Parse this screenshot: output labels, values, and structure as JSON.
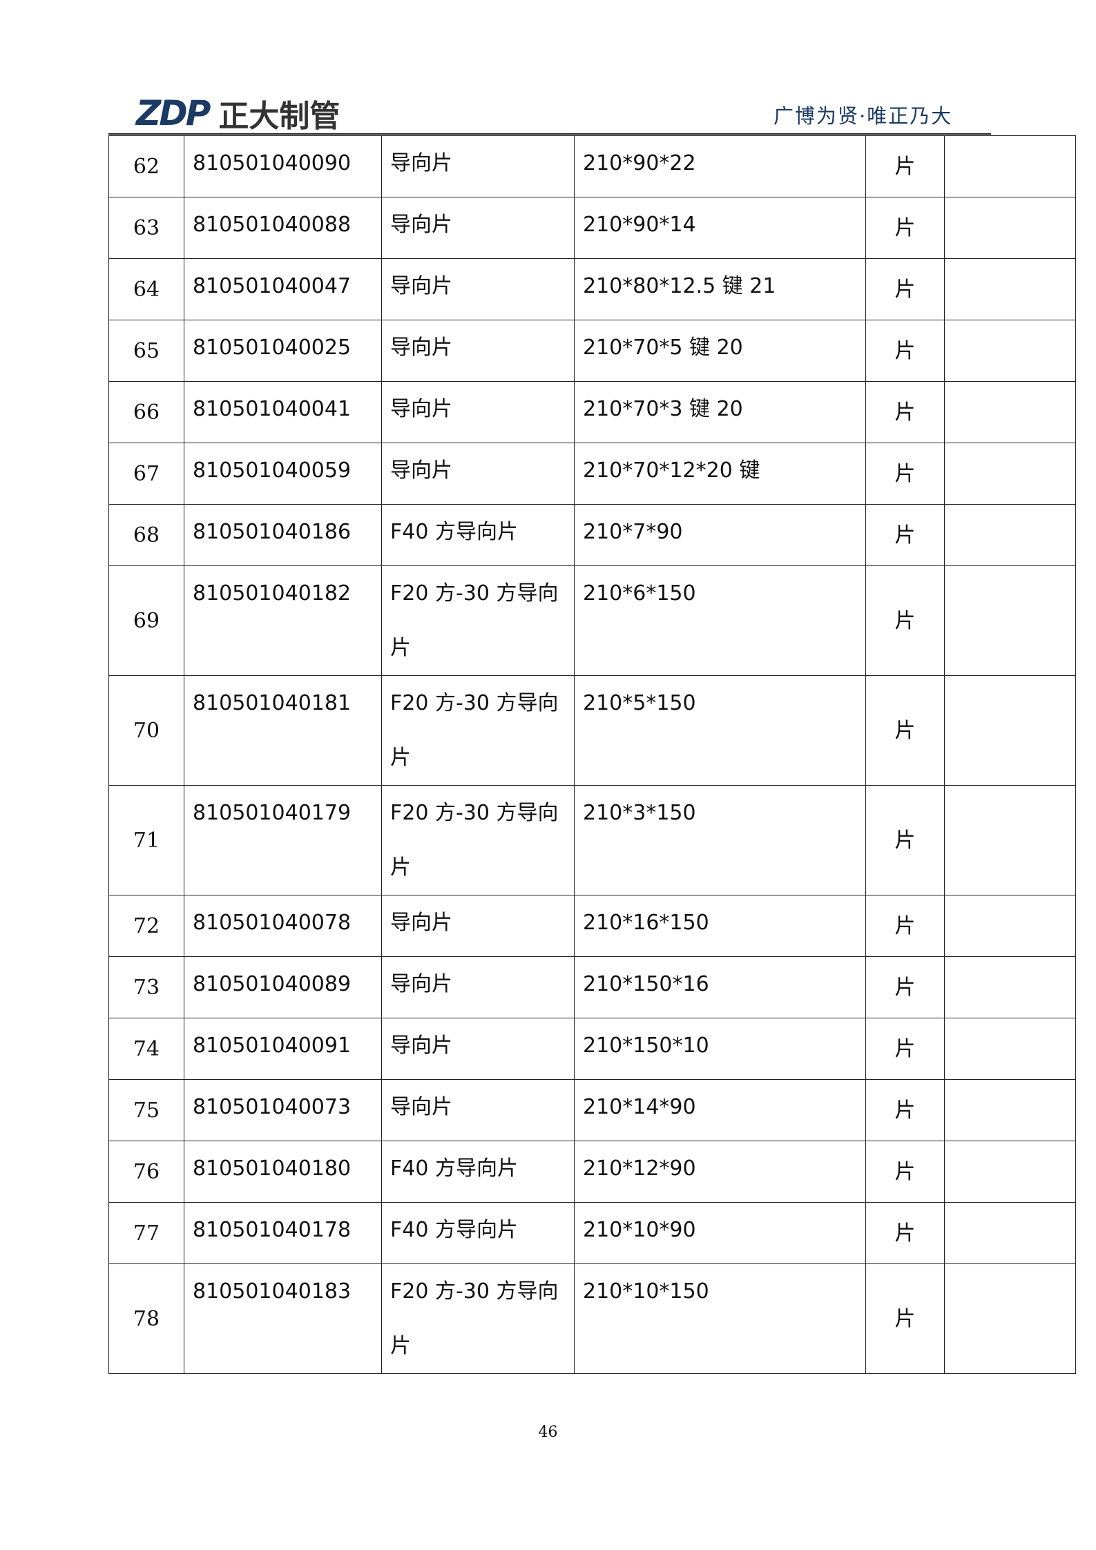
{
  "header": {
    "logo_text": "ZDP 正大制管",
    "logo_mark": "ZDP",
    "logo_cn": "正大制管",
    "slogan": "广博为贤·唯正乃大",
    "brand_color": "#1c3a64"
  },
  "rows": [
    {
      "no": "62",
      "code": "810501040090",
      "name": "导向片",
      "spec": "210*90*22",
      "unit": "片",
      "remark": ""
    },
    {
      "no": "63",
      "code": "810501040088",
      "name": "导向片",
      "spec": "210*90*14",
      "unit": "片",
      "remark": ""
    },
    {
      "no": "64",
      "code": "810501040047",
      "name": "导向片",
      "spec": "210*80*12.5 键 21",
      "unit": "片",
      "remark": ""
    },
    {
      "no": "65",
      "code": "810501040025",
      "name": "导向片",
      "spec": "210*70*5 键 20",
      "unit": "片",
      "remark": ""
    },
    {
      "no": "66",
      "code": "810501040041",
      "name": "导向片",
      "spec": "210*70*3 键 20",
      "unit": "片",
      "remark": ""
    },
    {
      "no": "67",
      "code": "810501040059",
      "name": "导向片",
      "spec": "210*70*12*20 键",
      "unit": "片",
      "remark": ""
    },
    {
      "no": "68",
      "code": "810501040186",
      "name": "F40 方导向片",
      "spec": "210*7*90",
      "unit": "片",
      "remark": ""
    },
    {
      "no": "69",
      "code": "810501040182",
      "name": "F20 方-30 方导向片",
      "spec": "210*6*150",
      "unit": "片",
      "remark": ""
    },
    {
      "no": "70",
      "code": "810501040181",
      "name": "F20 方-30 方导向片",
      "spec": "210*5*150",
      "unit": "片",
      "remark": ""
    },
    {
      "no": "71",
      "code": "810501040179",
      "name": "F20 方-30 方导向片",
      "spec": "210*3*150",
      "unit": "片",
      "remark": ""
    },
    {
      "no": "72",
      "code": "810501040078",
      "name": "导向片",
      "spec": "210*16*150",
      "unit": "片",
      "remark": ""
    },
    {
      "no": "73",
      "code": "810501040089",
      "name": "导向片",
      "spec": "210*150*16",
      "unit": "片",
      "remark": ""
    },
    {
      "no": "74",
      "code": "810501040091",
      "name": "导向片",
      "spec": "210*150*10",
      "unit": "片",
      "remark": ""
    },
    {
      "no": "75",
      "code": "810501040073",
      "name": "导向片",
      "spec": "210*14*90",
      "unit": "片",
      "remark": ""
    },
    {
      "no": "76",
      "code": "810501040180",
      "name": "F40 方导向片",
      "spec": "210*12*90",
      "unit": "片",
      "remark": ""
    },
    {
      "no": "77",
      "code": "810501040178",
      "name": "F40 方导向片",
      "spec": "210*10*90",
      "unit": "片",
      "remark": ""
    },
    {
      "no": "78",
      "code": "810501040183",
      "name": "F20 方-30 方导向片",
      "spec": "210*10*150",
      "unit": "片",
      "remark": ""
    }
  ],
  "page_number": "46"
}
